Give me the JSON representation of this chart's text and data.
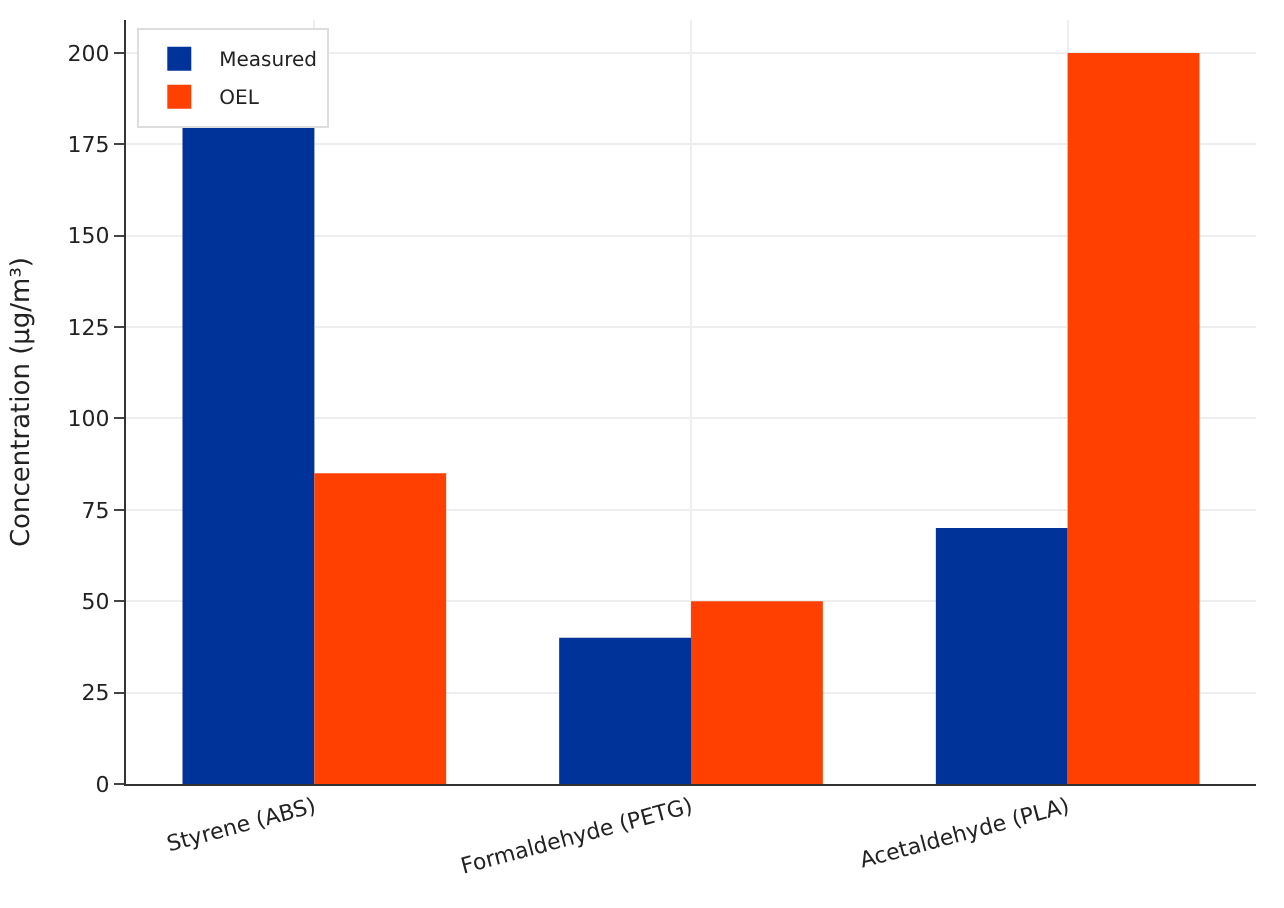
{
  "chart_data": {
    "type": "bar",
    "ylabel": "Concentration (µg/m³)",
    "categories": [
      "Styrene (ABS)",
      "Formaldehyde (PETG)",
      "Acetaldehyde (PLA)"
    ],
    "series": [
      {
        "name": "Measured",
        "color": "#003399",
        "values": [
          180,
          40,
          70
        ]
      },
      {
        "name": "OEL",
        "color": "#ff4000",
        "values": [
          85,
          50,
          200
        ]
      }
    ],
    "ylim": [
      0,
      209
    ],
    "yticks": [
      0,
      25,
      50,
      75,
      100,
      125,
      150,
      175,
      200
    ],
    "grid": true,
    "legend": "top left"
  }
}
